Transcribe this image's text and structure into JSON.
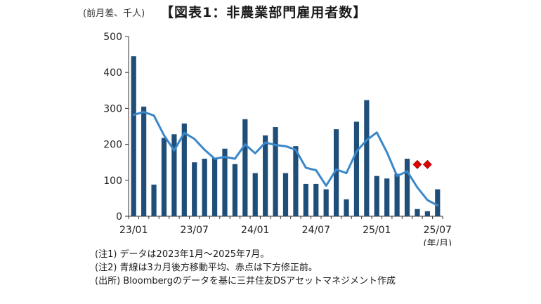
{
  "header": {
    "unit_label": "(前月差、千人)",
    "title": "【図表1：非農業部門雇用者数】"
  },
  "colors": {
    "bars": "#1f4e79",
    "line": "#3a87c9",
    "markers": "#e00000",
    "axis": "#333333"
  },
  "chart_data": {
    "type": "bar",
    "title": "【図表1：非農業部門雇用者数】",
    "ylabel": "(前月差、千人)",
    "xlabel": "(年/月)",
    "ylim": [
      0,
      500
    ],
    "y_ticks": [
      "0",
      "100",
      "200",
      "300",
      "400",
      "500"
    ],
    "x_tick_labels": [
      {
        "index": 0,
        "label": "23/01"
      },
      {
        "index": 6,
        "label": "23/07"
      },
      {
        "index": 12,
        "label": "24/01"
      },
      {
        "index": 18,
        "label": "24/07"
      },
      {
        "index": 24,
        "label": "25/01"
      },
      {
        "index": 30,
        "label": "25/07"
      }
    ],
    "categories": [
      "2023/01",
      "2023/02",
      "2023/03",
      "2023/04",
      "2023/05",
      "2023/06",
      "2023/07",
      "2023/08",
      "2023/09",
      "2023/10",
      "2023/11",
      "2023/12",
      "2024/01",
      "2024/02",
      "2024/03",
      "2024/04",
      "2024/05",
      "2024/06",
      "2024/07",
      "2024/08",
      "2024/09",
      "2024/10",
      "2024/11",
      "2024/12",
      "2025/01",
      "2025/02",
      "2025/03",
      "2025/04",
      "2025/05",
      "2025/06",
      "2025/07"
    ],
    "series": [
      {
        "kind": "bar",
        "values": [
          445,
          305,
          88,
          218,
          228,
          258,
          150,
          160,
          162,
          188,
          145,
          270,
          120,
          225,
          248,
          120,
          195,
          90,
          90,
          75,
          242,
          47,
          263,
          323,
          112,
          105,
          118,
          160,
          20,
          14,
          75
        ]
      },
      {
        "kind": "line",
        "values": [
          282,
          290,
          280,
          225,
          183,
          232,
          215,
          185,
          160,
          165,
          160,
          200,
          175,
          205,
          198,
          195,
          185,
          135,
          128,
          85,
          130,
          120,
          180,
          212,
          233,
          178,
          112,
          125,
          80,
          45,
          30
        ]
      },
      {
        "kind": "markers",
        "values": [
          null,
          null,
          null,
          null,
          null,
          null,
          null,
          null,
          null,
          null,
          null,
          null,
          null,
          null,
          null,
          null,
          null,
          null,
          null,
          null,
          null,
          null,
          null,
          null,
          null,
          null,
          null,
          null,
          144,
          144,
          null
        ]
      }
    ]
  },
  "notes": [
    "(注1) データは2023年1月～2025年7月。",
    "(注2) 青線は3カ月後方移動平均、赤点は下方修正前。",
    "(出所) Bloombergのデータを基に三井住友DSアセットマネジメント作成"
  ]
}
